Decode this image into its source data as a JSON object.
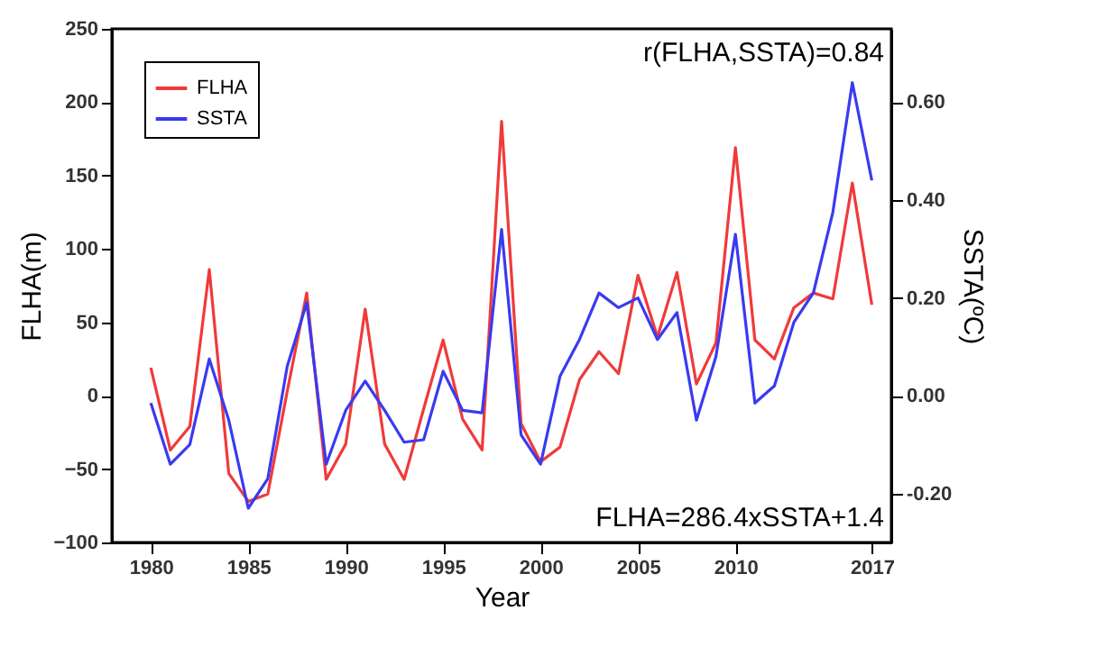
{
  "chart_data": {
    "type": "line",
    "xlabel": "Year",
    "ylabel": "FLHA(m)",
    "y2label": "SSTA(ºC)",
    "x": [
      1980,
      1981,
      1982,
      1983,
      1984,
      1985,
      1986,
      1987,
      1988,
      1989,
      1990,
      1991,
      1992,
      1993,
      1994,
      1995,
      1996,
      1997,
      1998,
      1999,
      2000,
      2001,
      2002,
      2003,
      2004,
      2005,
      2006,
      2007,
      2008,
      2009,
      2010,
      2011,
      2012,
      2013,
      2014,
      2015,
      2016,
      2017
    ],
    "series": [
      {
        "name": "FLHA",
        "color": "#f03a3a",
        "values": [
          19,
          -37,
          -21,
          86,
          -53,
          -72,
          -67,
          3,
          70,
          -57,
          -33,
          59,
          -33,
          -57,
          -9,
          38,
          -16,
          -37,
          187,
          -19,
          -45,
          -35,
          11,
          30,
          15,
          82,
          40,
          84,
          8,
          36,
          169,
          38,
          25,
          60,
          70,
          66,
          145,
          62
        ]
      },
      {
        "name": "SSTA",
        "color": "#3a3af0",
        "axis": "y2",
        "values": [
          -0.015,
          -0.14,
          -0.1,
          0.075,
          -0.05,
          -0.23,
          -0.17,
          0.06,
          0.19,
          -0.14,
          -0.03,
          0.03,
          -0.03,
          -0.095,
          -0.09,
          0.05,
          -0.03,
          -0.035,
          0.34,
          -0.08,
          -0.14,
          0.04,
          0.115,
          0.21,
          0.18,
          0.2,
          0.115,
          0.17,
          -0.05,
          0.08,
          0.33,
          -0.015,
          0.02,
          0.15,
          0.21,
          0.375,
          0.64,
          0.44
        ]
      }
    ],
    "xlim": [
      1978,
      2018
    ],
    "xticks": [
      1980,
      1985,
      1990,
      1995,
      2000,
      2005,
      2010,
      2017
    ],
    "ylim": [
      -100,
      250
    ],
    "yticks": [
      -100,
      -50,
      0,
      50,
      100,
      150,
      200,
      250
    ],
    "y2lim": [
      -0.3,
      0.75
    ],
    "y2ticks": [
      {
        "value": -0.2,
        "label": "-0.20"
      },
      {
        "value": 0,
        "label": "0.00"
      },
      {
        "value": 0.2,
        "label": "0.20"
      },
      {
        "value": 0.4,
        "label": "0.40"
      },
      {
        "value": 0.6,
        "label": "0.60"
      }
    ],
    "annotations": [
      "r(FLHA,SSTA)=0.84",
      "FLHA=286.4xSSTA+1.4"
    ],
    "legend": "top left",
    "grid": false,
    "marker": "none",
    "line_style": "solid"
  }
}
